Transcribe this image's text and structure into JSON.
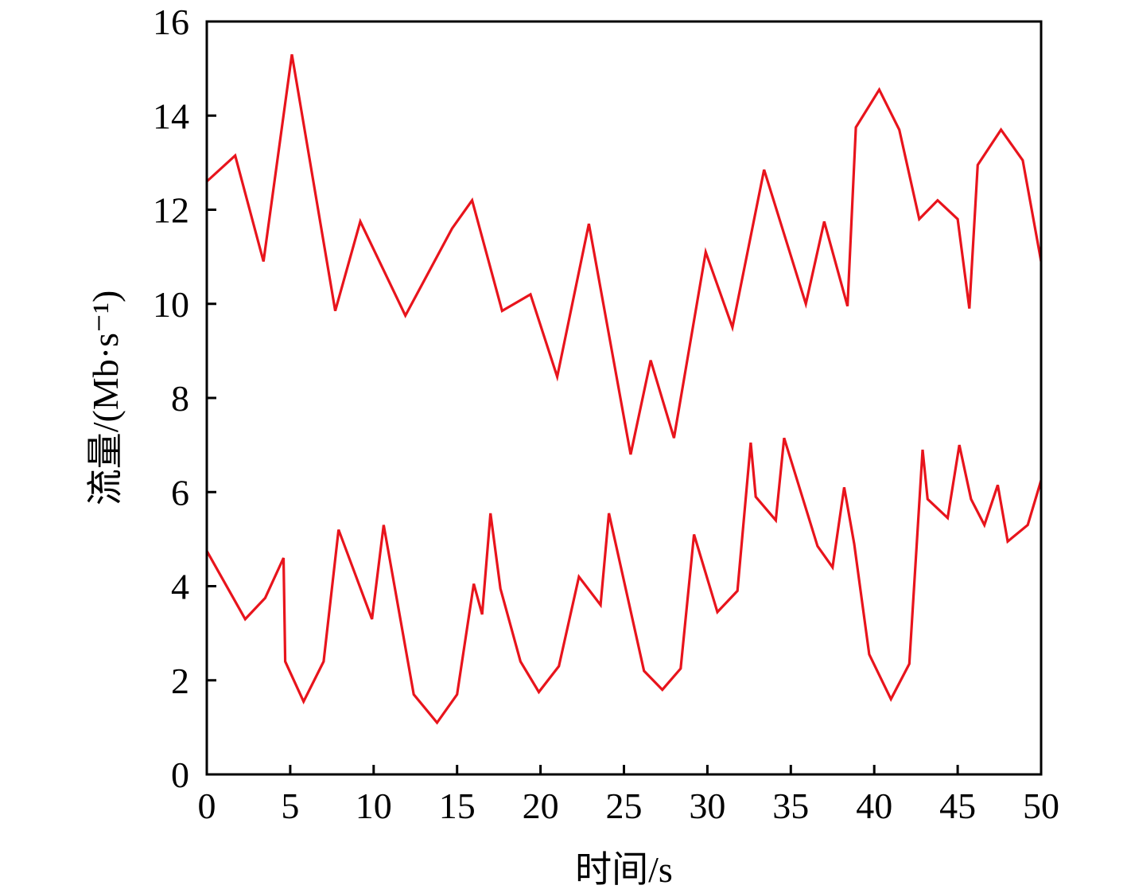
{
  "chart_data": {
    "type": "line",
    "title": "",
    "xlabel": "时间/s",
    "ylabel": "流量/(Mb·s⁻¹)",
    "xlim": [
      0,
      50
    ],
    "ylim": [
      0,
      16
    ],
    "xticks": [
      0,
      5,
      10,
      15,
      20,
      25,
      30,
      35,
      40,
      45,
      50
    ],
    "yticks": [
      0,
      2,
      4,
      6,
      8,
      10,
      12,
      14,
      16
    ],
    "grid": false,
    "legend": "none",
    "color": "#e8141c",
    "series": [
      {
        "points": [
          [
            0,
            12.6
          ],
          [
            1.7,
            13.15
          ],
          [
            3.4,
            10.9
          ],
          [
            5.1,
            15.3
          ],
          [
            7.7,
            9.85
          ],
          [
            9.2,
            11.75
          ],
          [
            11.9,
            9.75
          ],
          [
            14.7,
            11.6
          ],
          [
            15.9,
            12.2
          ],
          [
            17.7,
            9.85
          ],
          [
            19.4,
            10.2
          ],
          [
            21.0,
            8.45
          ],
          [
            22.9,
            11.7
          ],
          [
            25.4,
            6.8
          ],
          [
            26.6,
            8.8
          ],
          [
            28.0,
            7.15
          ],
          [
            29.9,
            11.1
          ],
          [
            31.5,
            9.5
          ],
          [
            33.4,
            12.85
          ],
          [
            35.9,
            10.0
          ],
          [
            37.0,
            11.75
          ],
          [
            38.4,
            9.95
          ],
          [
            38.9,
            13.75
          ],
          [
            40.3,
            14.55
          ],
          [
            41.5,
            13.7
          ],
          [
            42.7,
            11.8
          ],
          [
            43.8,
            12.2
          ],
          [
            45.0,
            11.8
          ],
          [
            45.7,
            9.9
          ],
          [
            46.2,
            12.95
          ],
          [
            47.6,
            13.7
          ],
          [
            48.9,
            13.05
          ],
          [
            50.0,
            10.9
          ]
        ]
      },
      {
        "points": [
          [
            0,
            4.75
          ],
          [
            2.3,
            3.3
          ],
          [
            3.5,
            3.75
          ],
          [
            4.6,
            4.6
          ],
          [
            4.7,
            2.4
          ],
          [
            5.8,
            1.55
          ],
          [
            7.0,
            2.4
          ],
          [
            7.9,
            5.2
          ],
          [
            9.9,
            3.3
          ],
          [
            10.6,
            5.3
          ],
          [
            11.3,
            3.9
          ],
          [
            12.4,
            1.7
          ],
          [
            13.8,
            1.1
          ],
          [
            15.0,
            1.7
          ],
          [
            16.0,
            4.05
          ],
          [
            16.5,
            3.4
          ],
          [
            17.0,
            5.55
          ],
          [
            17.6,
            3.95
          ],
          [
            18.8,
            2.4
          ],
          [
            19.9,
            1.75
          ],
          [
            21.1,
            2.3
          ],
          [
            22.3,
            4.2
          ],
          [
            23.6,
            3.6
          ],
          [
            24.1,
            5.55
          ],
          [
            26.2,
            2.2
          ],
          [
            27.3,
            1.8
          ],
          [
            28.4,
            2.25
          ],
          [
            29.2,
            5.1
          ],
          [
            30.6,
            3.45
          ],
          [
            31.8,
            3.9
          ],
          [
            32.6,
            7.05
          ],
          [
            32.9,
            5.9
          ],
          [
            34.1,
            5.4
          ],
          [
            34.6,
            7.15
          ],
          [
            35.6,
            6.0
          ],
          [
            36.6,
            4.85
          ],
          [
            37.5,
            4.4
          ],
          [
            38.2,
            6.1
          ],
          [
            38.8,
            4.9
          ],
          [
            39.7,
            2.55
          ],
          [
            41.0,
            1.6
          ],
          [
            42.1,
            2.35
          ],
          [
            42.9,
            6.9
          ],
          [
            43.2,
            5.85
          ],
          [
            44.4,
            5.45
          ],
          [
            45.1,
            7.0
          ],
          [
            45.8,
            5.85
          ],
          [
            46.6,
            5.3
          ],
          [
            47.4,
            6.15
          ],
          [
            48.0,
            4.95
          ],
          [
            49.2,
            5.3
          ],
          [
            50.0,
            6.25
          ]
        ]
      }
    ]
  }
}
